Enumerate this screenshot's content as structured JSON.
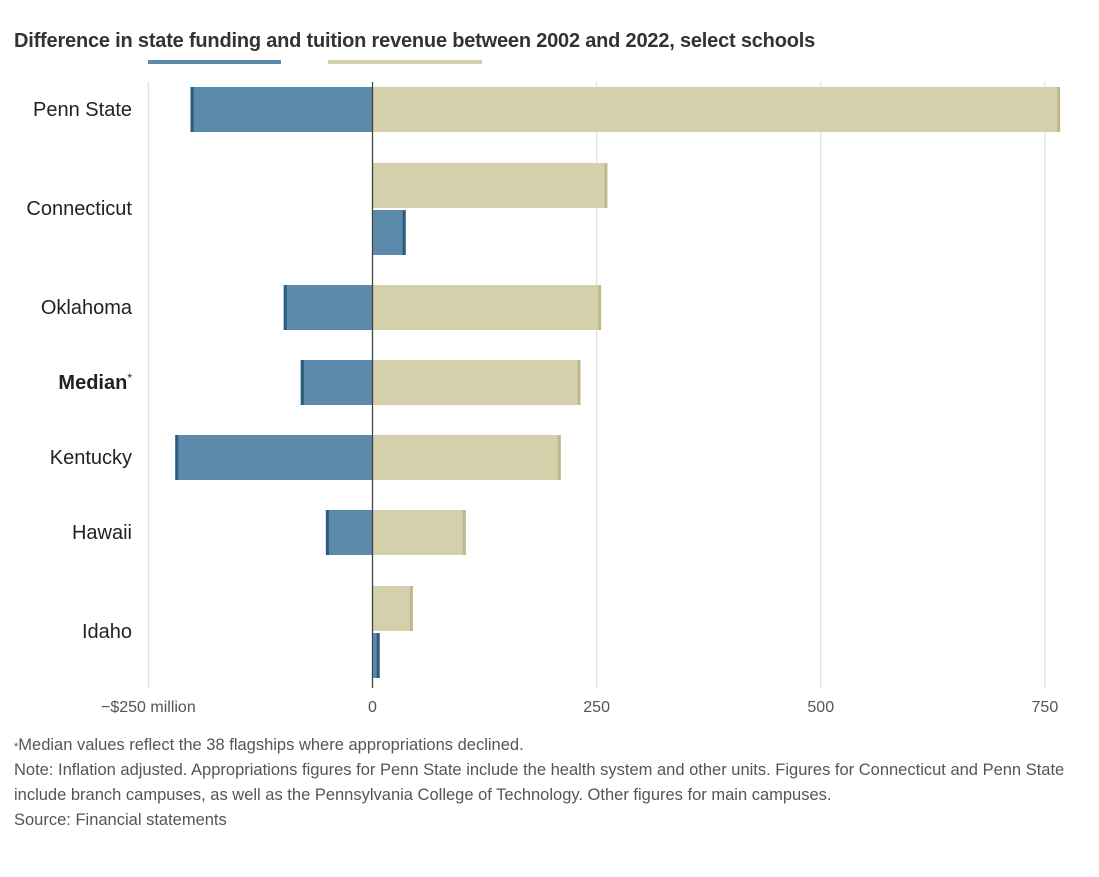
{
  "title": "Difference in state funding and tuition revenue between 2002 and 2022, select schools",
  "colors": {
    "state_funding": "#5b8aab",
    "state_funding_edge": "#2a5c80",
    "tuition": "#d3d0ab",
    "tuition_edge": "#bdb98a",
    "grid": "#dcdcdc",
    "zero_line": "#444444"
  },
  "chart_data": {
    "type": "bar",
    "orientation": "horizontal",
    "title": "Difference in state funding and tuition revenue between 2002 and 2022, select schools",
    "xlim": [
      -250,
      770
    ],
    "x_ticks": [
      -250,
      0,
      250,
      500,
      750
    ],
    "x_tick_labels": [
      "−$250 million",
      "0",
      "250",
      "500",
      "750"
    ],
    "grid": true,
    "legend": "swatches under title, labels not printed",
    "categories": [
      {
        "label": "Penn State",
        "bold": false,
        "note_mark": "",
        "layout": "overlap",
        "state_funding": -203,
        "tuition": 767
      },
      {
        "label": "Connecticut",
        "bold": false,
        "note_mark": "",
        "layout": "stacked",
        "state_funding": 37,
        "tuition": 262
      },
      {
        "label": "Oklahoma",
        "bold": false,
        "note_mark": "",
        "layout": "overlap",
        "state_funding": -99,
        "tuition": 255
      },
      {
        "label": "Median",
        "bold": true,
        "note_mark": "*",
        "layout": "overlap",
        "state_funding": -80,
        "tuition": 232
      },
      {
        "label": "Kentucky",
        "bold": false,
        "note_mark": "",
        "layout": "overlap",
        "state_funding": -220,
        "tuition": 210
      },
      {
        "label": "Hawaii",
        "bold": false,
        "note_mark": "",
        "layout": "overlap",
        "state_funding": -52,
        "tuition": 104
      },
      {
        "label": "Idaho",
        "bold": false,
        "note_mark": "",
        "layout": "stacked",
        "state_funding": 8,
        "tuition": 45
      }
    ],
    "series": [
      {
        "key": "state_funding"
      },
      {
        "key": "tuition"
      }
    ]
  },
  "notes": {
    "footnote_mark": "*",
    "footnote": "Median values reflect the 38 flagships where appropriations declined.",
    "note": "Note: Inflation adjusted. Appropriations figures for Penn State include the health system and other units. Figures for Connecticut and Penn State include branch campuses, as well as the Pennsylvania College of Technology. Other figures for main campuses.",
    "source": "Source: Financial statements"
  }
}
